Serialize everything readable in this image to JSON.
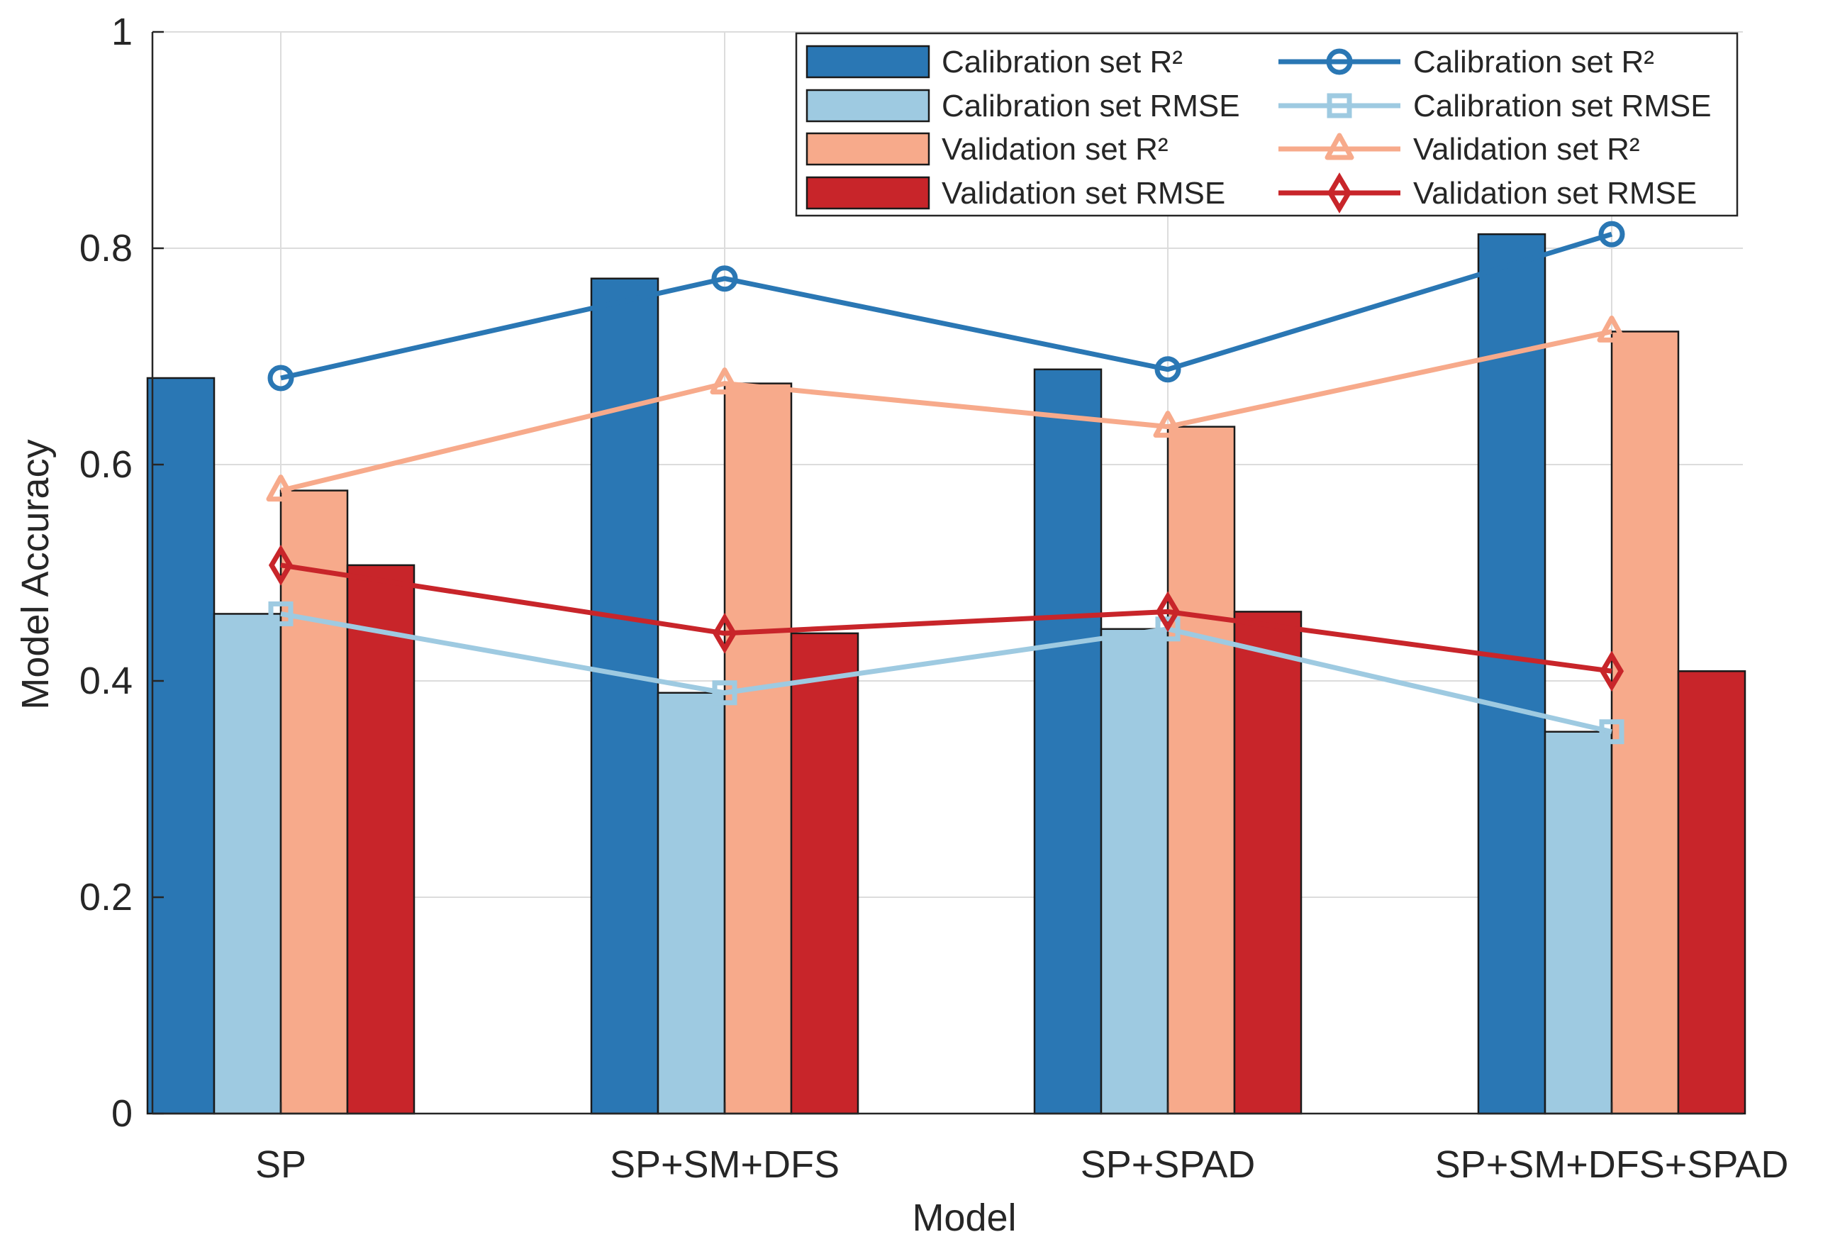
{
  "chart_data": {
    "type": "bar",
    "title": "",
    "xlabel": "Model",
    "ylabel": "Model Accuracy",
    "ylim": [
      0,
      1
    ],
    "yticks": [
      0,
      0.2,
      0.4,
      0.6,
      0.8,
      1
    ],
    "ytick_labels": [
      "0",
      "0.2",
      "0.4",
      "0.6",
      "0.8",
      "1"
    ],
    "grid": true,
    "legend_position": "top-right",
    "categories": [
      "SP",
      "SP+SM+DFS",
      "SP+SPAD",
      "SP+SM+DFS+SPAD"
    ],
    "series": [
      {
        "name": "Calibration set R²",
        "kind": "bar",
        "color": "#2a77b4",
        "values": [
          0.68,
          0.772,
          0.688,
          0.813
        ]
      },
      {
        "name": "Calibration set RMSE",
        "kind": "bar",
        "color": "#9ecae1",
        "values": [
          0.462,
          0.389,
          0.448,
          0.353
        ]
      },
      {
        "name": "Validation set R²",
        "kind": "bar",
        "color": "#f7aa8b",
        "values": [
          0.576,
          0.675,
          0.635,
          0.723
        ]
      },
      {
        "name": "Validation set RMSE",
        "kind": "bar",
        "color": "#c8252a",
        "values": [
          0.507,
          0.444,
          0.464,
          0.409
        ]
      }
    ],
    "lines": [
      {
        "name": "Calibration set R²",
        "kind": "line",
        "marker": "circle",
        "color": "#2a77b4",
        "values": [
          0.68,
          0.772,
          0.688,
          0.813
        ]
      },
      {
        "name": "Calibration set RMSE",
        "kind": "line",
        "marker": "square",
        "color": "#9ecae1",
        "values": [
          0.462,
          0.389,
          0.448,
          0.353
        ]
      },
      {
        "name": "Validation set R²",
        "kind": "line",
        "marker": "triangle",
        "color": "#f7aa8b",
        "values": [
          0.576,
          0.675,
          0.635,
          0.723
        ]
      },
      {
        "name": "Validation set RMSE",
        "kind": "line",
        "marker": "diamond",
        "color": "#c8252a",
        "values": [
          0.507,
          0.444,
          0.464,
          0.409
        ]
      }
    ]
  }
}
